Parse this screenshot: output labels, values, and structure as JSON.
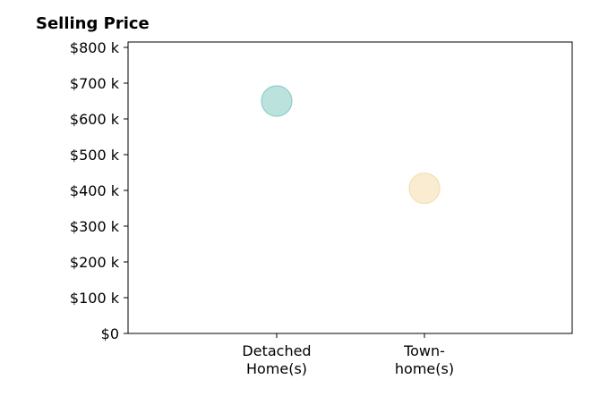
{
  "chart_data": {
    "type": "scatter",
    "title": "Selling Price",
    "xlabel": "",
    "ylabel": "",
    "categories": [
      [
        "Detached",
        "Home(s)"
      ],
      [
        "Town-",
        "home(s)"
      ]
    ],
    "values": [
      650000,
      406000
    ],
    "point_colors": [
      "#8fcfc8",
      "#f5dfb2"
    ],
    "ylim": [
      0,
      800000
    ],
    "yticks": [
      0,
      100000,
      200000,
      300000,
      400000,
      500000,
      600000,
      700000,
      800000
    ],
    "ytick_labels": [
      "$0",
      "$100 k",
      "$200 k",
      "$300 k",
      "$400 k",
      "$500 k",
      "$600 k",
      "$700 k",
      "$800 k"
    ],
    "grid": false,
    "legend": "none"
  }
}
